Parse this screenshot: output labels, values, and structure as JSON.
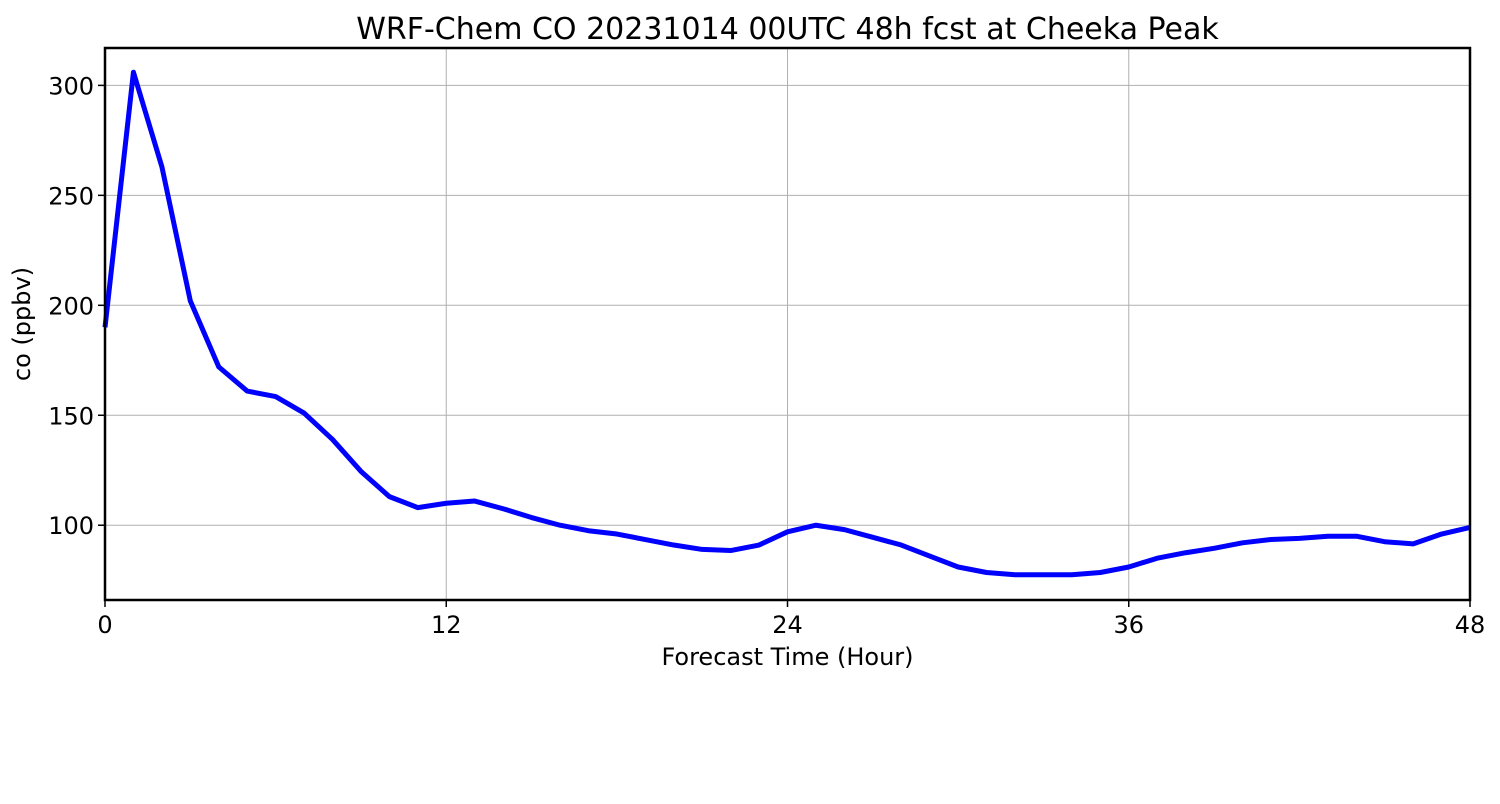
{
  "chart_data": {
    "type": "line",
    "title": "WRF-Chem CO  20231014 00UTC 48h fcst at Cheeka Peak",
    "xlabel": "Forecast Time (Hour)",
    "ylabel": "co  (ppbv)",
    "xlim": [
      0,
      48
    ],
    "ylim": [
      66,
      317
    ],
    "xticks": [
      0,
      12,
      24,
      36,
      48
    ],
    "yticks": [
      100,
      150,
      200,
      250,
      300
    ],
    "grid": true,
    "line_color": "#0000ff",
    "series": [
      {
        "x": [
          0,
          1,
          2,
          3,
          4,
          5,
          6,
          7,
          8,
          9,
          10,
          11,
          12,
          13,
          14,
          15,
          16,
          17,
          18,
          19,
          20,
          21,
          22,
          23,
          24,
          25,
          26,
          27,
          28,
          29,
          30,
          31,
          32,
          33,
          34,
          35,
          36,
          37,
          38,
          39,
          40,
          41,
          42,
          43,
          44,
          45,
          46,
          47,
          48
        ],
        "values": [
          190,
          306,
          263,
          202,
          172,
          161,
          158.5,
          151,
          139,
          124.5,
          113,
          108,
          110,
          111,
          107.5,
          103.5,
          100,
          97.5,
          96,
          93.5,
          91,
          89,
          88.5,
          91,
          97,
          100,
          98,
          94.5,
          91,
          86,
          81,
          78.5,
          77.5,
          77.5,
          77.5,
          78.5,
          81,
          85,
          87.5,
          89.5,
          92,
          93.5,
          94,
          95,
          95,
          92.5,
          91.5,
          96,
          99
        ]
      }
    ]
  }
}
